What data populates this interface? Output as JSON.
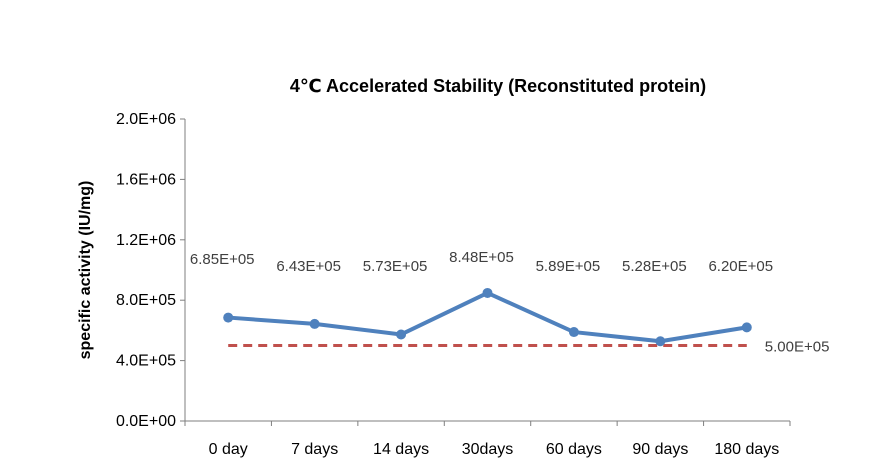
{
  "chart_data": {
    "type": "line",
    "title": "4℃ Accelerated  Stability (Reconstituted protein)",
    "xlabel": "",
    "ylabel": "specific activity (IU/mg)",
    "categories": [
      "0 day",
      "7 days",
      "14 days",
      "30days",
      "60 days",
      "90 days",
      "180 days"
    ],
    "series": [
      {
        "values": [
          685000,
          643000,
          573000,
          848000,
          589000,
          528000,
          620000
        ],
        "data_labels": [
          "6.85E+05",
          "6.43E+05",
          "5.73E+05",
          "8.48E+05",
          "5.89E+05",
          "5.28E+05",
          "6.20E+05"
        ],
        "color": "#4f81bd",
        "style": "solid-with-markers"
      }
    ],
    "reference_line": {
      "value": 500000,
      "label": "5.00E+05",
      "color": "#c0504d",
      "style": "dashed"
    },
    "ylim": [
      0,
      2000000
    ],
    "yticks": [
      0,
      400000,
      800000,
      1200000,
      1600000,
      2000000
    ],
    "ytick_labels": [
      "0.0E+00",
      "4.0E+05",
      "8.0E+05",
      "1.2E+06",
      "1.6E+06",
      "2.0E+06"
    ],
    "grid": false,
    "legend": "none"
  }
}
